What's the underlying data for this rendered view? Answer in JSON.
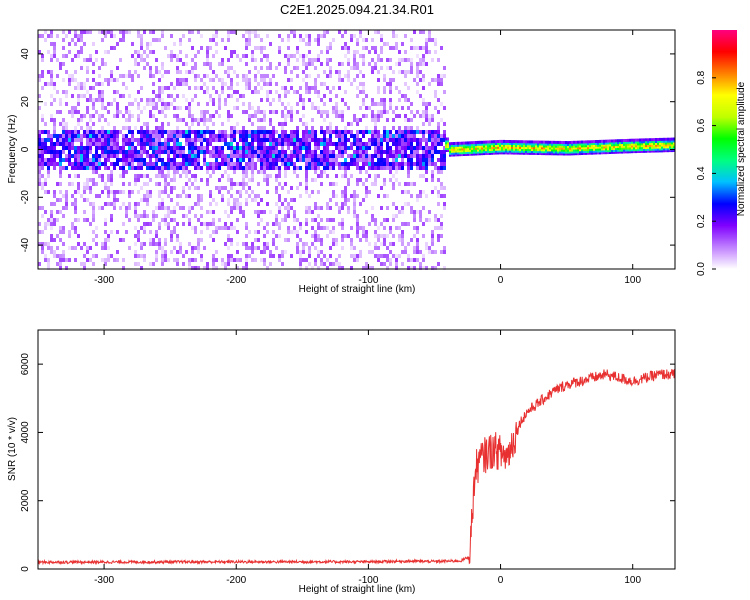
{
  "chart_data": [
    {
      "type": "heatmap",
      "title": "C2E1.2025.094.21.34.R01",
      "xlabel": "Height of straight line (km)",
      "ylabel": "Frequency (Hz)",
      "xlim": [
        -350,
        132
      ],
      "ylim": [
        -50,
        50
      ],
      "x_ticks": [
        -300,
        -200,
        -100,
        0,
        100
      ],
      "y_ticks": [
        -40,
        -20,
        0,
        20,
        40
      ],
      "colorbar": {
        "label": "Normalized spectral amplitude",
        "range": [
          0,
          1
        ],
        "ticks": [
          "0.0",
          "0.2",
          "0.4",
          "0.6",
          "0.8"
        ],
        "tick_values": [
          0,
          0.2,
          0.4,
          0.6,
          0.8
        ],
        "colors": [
          "#ffffff",
          "#c080ff",
          "#8000ff",
          "#0000ff",
          "#00c0ff",
          "#00ff80",
          "#00ff00",
          "#c0ff00",
          "#ffff00",
          "#ff8000",
          "#ff0000",
          "#ff0080"
        ]
      },
      "regions": [
        {
          "name": "noise",
          "x_range": [
            -350,
            -42
          ],
          "freq_band": [
            -50,
            50
          ],
          "core_band": [
            -8,
            8
          ],
          "amplitude": 0.2
        },
        {
          "name": "signal",
          "x_range": [
            -42,
            132
          ],
          "center_freq": [
            [
              -40,
              0
            ],
            [
              0,
              1
            ],
            [
              50,
              0.5
            ],
            [
              100,
              1.5
            ],
            [
              132,
              2
            ]
          ],
          "half_width": 2.5,
          "amplitude": 0.8
        }
      ]
    },
    {
      "type": "line",
      "xlabel": "Height of straight line (km)",
      "ylabel": "SNR (10 * v/v)",
      "xlim": [
        -350,
        132
      ],
      "ylim": [
        0,
        7000
      ],
      "x_ticks": [
        -300,
        -200,
        -100,
        0,
        100
      ],
      "y_ticks": [
        0,
        2000,
        4000,
        6000
      ],
      "series": [
        {
          "name": "SNR",
          "color": "#e83030",
          "x": [
            -350,
            -200,
            -100,
            -70,
            -50,
            -30,
            -24,
            -22,
            -20,
            -18,
            -15,
            -10,
            -5,
            0,
            5,
            10,
            15,
            20,
            30,
            40,
            50,
            60,
            70,
            80,
            90,
            100,
            110,
            120,
            132
          ],
          "y": [
            200,
            210,
            210,
            230,
            220,
            240,
            350,
            1200,
            2500,
            3000,
            3200,
            3400,
            3500,
            3400,
            3300,
            3800,
            4300,
            4600,
            4900,
            5200,
            5400,
            5500,
            5600,
            5700,
            5600,
            5500,
            5600,
            5700,
            5700
          ]
        }
      ]
    }
  ]
}
